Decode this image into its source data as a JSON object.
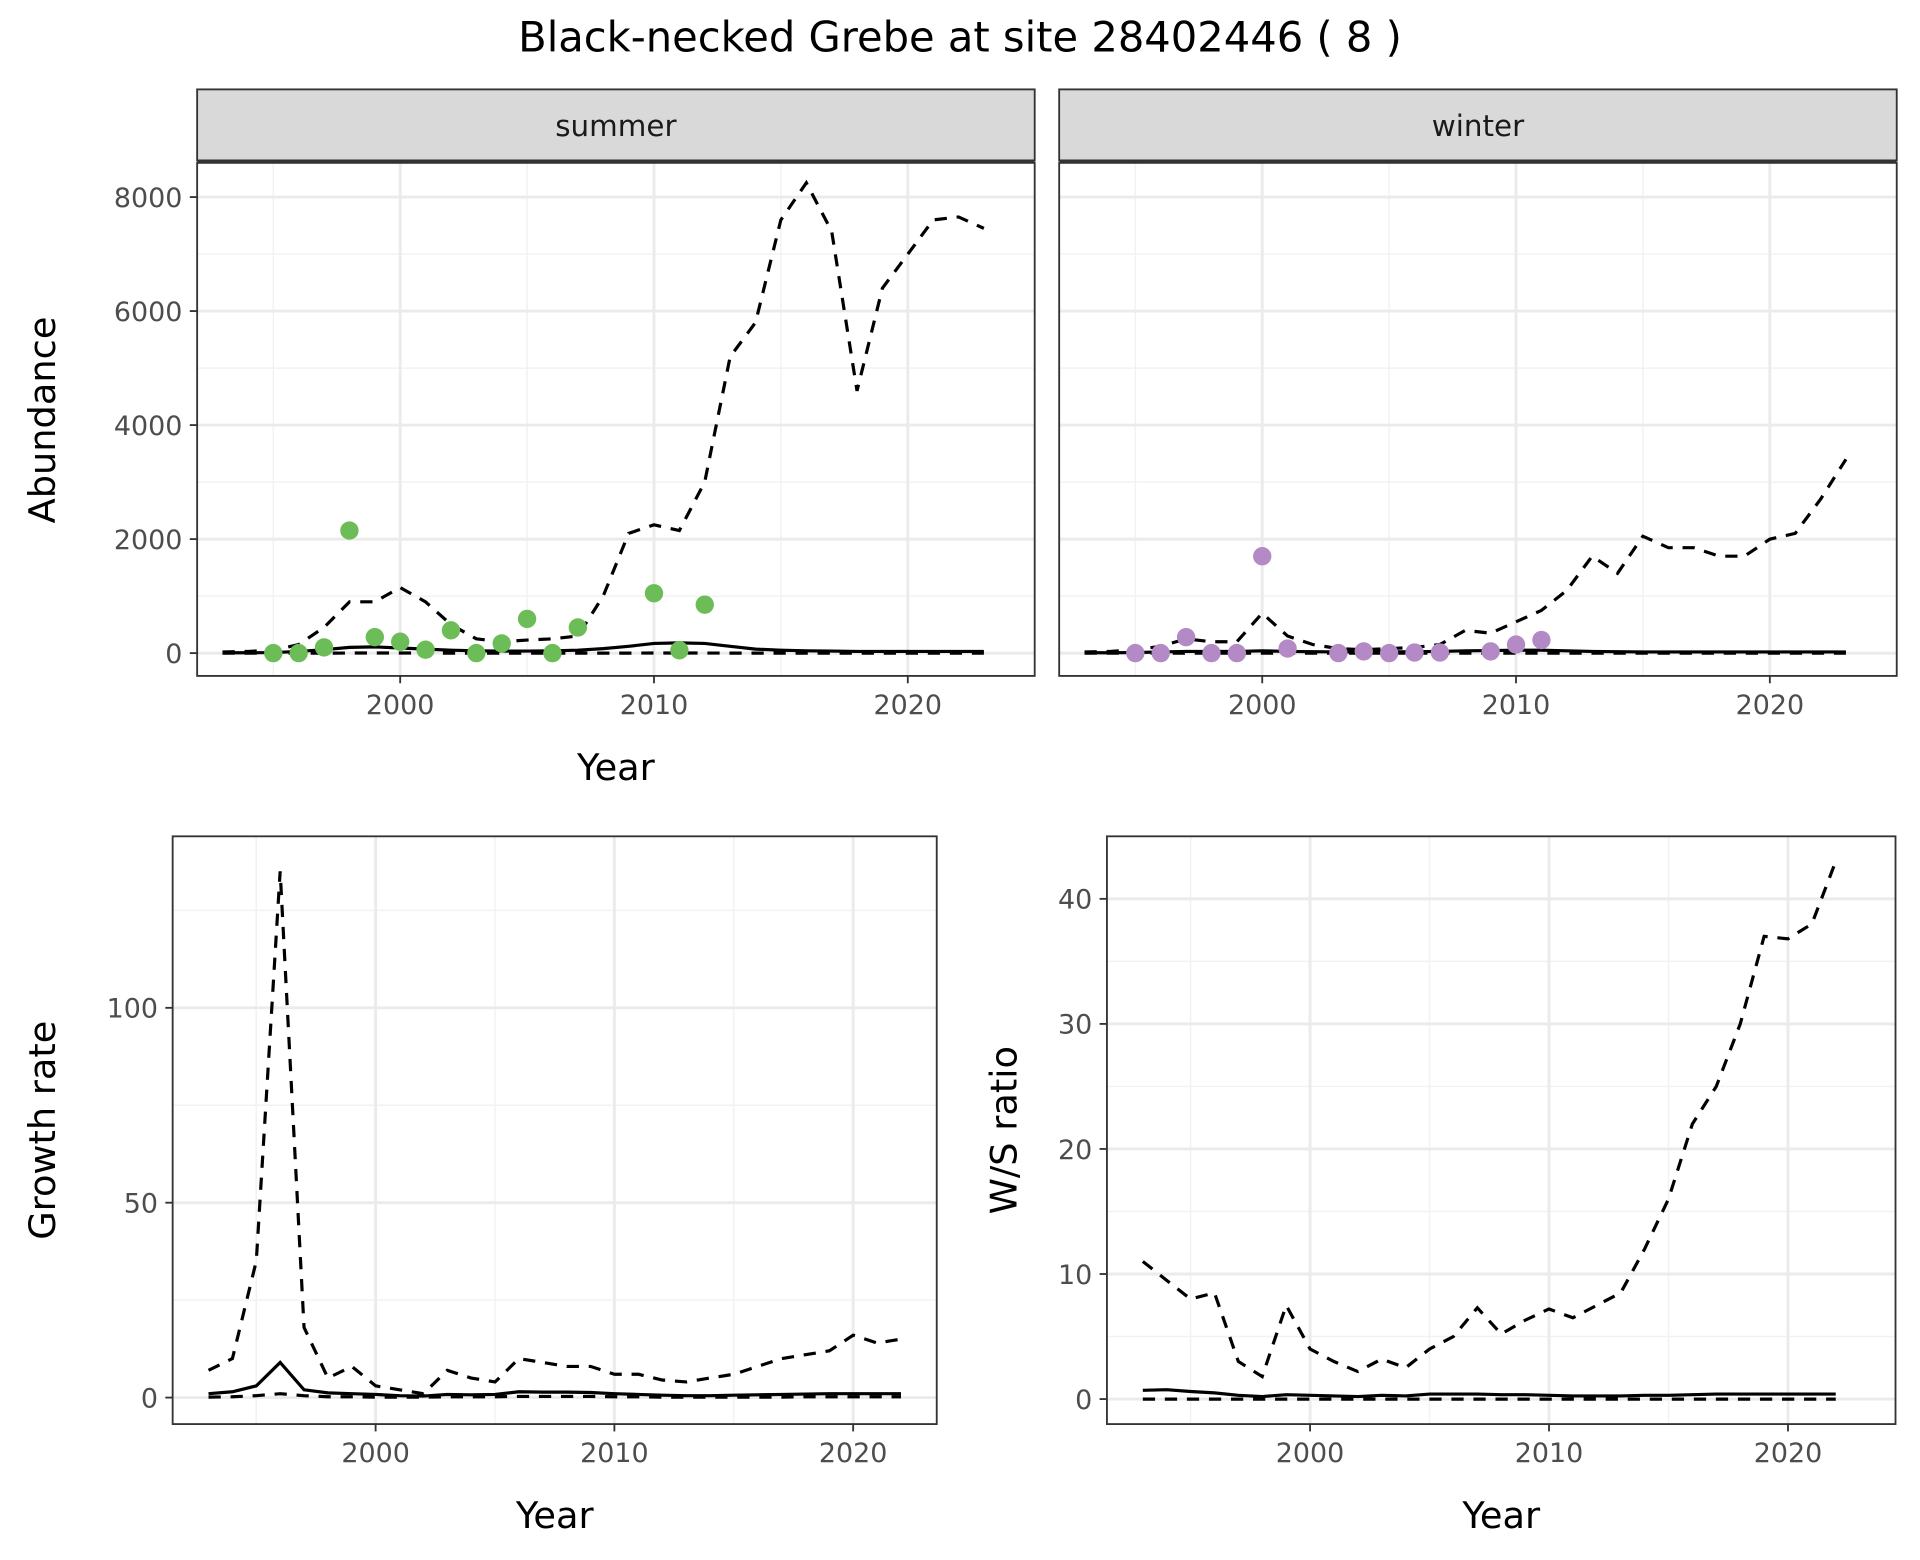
{
  "title": "Black-necked Grebe at site 28402446 ( 8 )",
  "colors": {
    "summer": "#6cbd58",
    "winter": "#b48ac6",
    "line": "#000000"
  },
  "chart_data": [
    {
      "type": "line",
      "panel": "summer",
      "strip": "summer",
      "xlabel": "Year",
      "ylabel": "Abundance",
      "xlim": [
        1992,
        2025
      ],
      "ylim": [
        -400,
        8600
      ],
      "xticks": [
        2000,
        2010,
        2020
      ],
      "yticks": [
        0,
        2000,
        4000,
        6000,
        8000
      ],
      "years": [
        1993,
        1994,
        1995,
        1996,
        1997,
        1998,
        1999,
        2000,
        2001,
        2002,
        2003,
        2004,
        2005,
        2006,
        2007,
        2008,
        2009,
        2010,
        2011,
        2012,
        2013,
        2014,
        2015,
        2016,
        2017,
        2018,
        2019,
        2020,
        2021,
        2022,
        2023
      ],
      "series": [
        {
          "name": "upper",
          "style": "dashed",
          "values": [
            20,
            30,
            50,
            150,
            450,
            900,
            900,
            1150,
            900,
            500,
            250,
            200,
            230,
            250,
            300,
            1000,
            2100,
            2250,
            2150,
            3000,
            5200,
            5800,
            7600,
            8250,
            7400,
            4600,
            6400,
            7000,
            7600,
            7650,
            7450
          ]
        },
        {
          "name": "median",
          "style": "solid",
          "values": [
            5,
            5,
            10,
            30,
            60,
            100,
            110,
            90,
            70,
            50,
            40,
            35,
            35,
            40,
            50,
            80,
            120,
            170,
            180,
            170,
            120,
            70,
            50,
            40,
            35,
            30,
            30,
            30,
            30,
            30,
            30
          ]
        },
        {
          "name": "lower",
          "style": "dashed",
          "values": [
            0,
            0,
            0,
            0,
            0,
            1,
            1,
            1,
            1,
            0,
            0,
            0,
            0,
            0,
            0,
            0,
            0,
            1,
            1,
            1,
            0,
            0,
            0,
            0,
            0,
            0,
            0,
            0,
            0,
            0,
            0
          ]
        }
      ],
      "points": {
        "x": [
          1995,
          1996,
          1997,
          1998,
          1999,
          2000,
          2001,
          2002,
          2003,
          2004,
          2005,
          2006,
          2007,
          2010,
          2011,
          2012
        ],
        "y": [
          0,
          0,
          100,
          2150,
          280,
          200,
          60,
          400,
          0,
          170,
          600,
          0,
          450,
          1050,
          50,
          850
        ]
      }
    },
    {
      "type": "line",
      "panel": "winter",
      "strip": "winter",
      "xlabel": "Year",
      "ylabel": "",
      "xlim": [
        1992,
        2025
      ],
      "ylim": [
        -400,
        8600
      ],
      "xticks": [
        2000,
        2010,
        2020
      ],
      "yticks": [],
      "years": [
        1993,
        1994,
        1995,
        1996,
        1997,
        1998,
        1999,
        2000,
        2001,
        2002,
        2003,
        2004,
        2005,
        2006,
        2007,
        2008,
        2009,
        2010,
        2011,
        2012,
        2013,
        2014,
        2015,
        2016,
        2017,
        2018,
        2019,
        2020,
        2021,
        2022,
        2023
      ],
      "series": [
        {
          "name": "upper",
          "style": "dashed",
          "values": [
            20,
            30,
            60,
            120,
            250,
            200,
            200,
            700,
            300,
            150,
            80,
            60,
            80,
            100,
            150,
            400,
            350,
            550,
            750,
            1100,
            1700,
            1400,
            2050,
            1850,
            1850,
            1700,
            1700,
            2000,
            2100,
            2700,
            3400
          ]
        },
        {
          "name": "median",
          "style": "solid",
          "values": [
            5,
            5,
            10,
            20,
            30,
            30,
            30,
            40,
            30,
            25,
            20,
            20,
            20,
            25,
            30,
            40,
            45,
            50,
            50,
            40,
            30,
            25,
            20,
            20,
            20,
            20,
            20,
            20,
            20,
            20,
            20
          ]
        },
        {
          "name": "lower",
          "style": "dashed",
          "values": [
            0,
            0,
            0,
            0,
            0,
            0,
            0,
            0,
            0,
            0,
            0,
            0,
            0,
            0,
            0,
            0,
            0,
            0,
            0,
            0,
            0,
            0,
            0,
            0,
            0,
            0,
            0,
            0,
            0,
            0,
            0
          ]
        }
      ],
      "points": {
        "x": [
          1995,
          1996,
          1997,
          1998,
          1999,
          2000,
          2001,
          2003,
          2004,
          2005,
          2006,
          2007,
          2009,
          2010,
          2011
        ],
        "y": [
          0,
          0,
          280,
          0,
          0,
          1700,
          80,
          0,
          30,
          0,
          10,
          10,
          30,
          150,
          230
        ]
      }
    },
    {
      "type": "line",
      "panel": "growth",
      "xlabel": "Year",
      "ylabel": "Growth rate",
      "xlim": [
        1991.5,
        2023.5
      ],
      "ylim": [
        -6.8,
        144
      ],
      "xticks": [
        2000,
        2010,
        2020
      ],
      "yticks": [
        0,
        50,
        100
      ],
      "years": [
        1993,
        1994,
        1995,
        1996,
        1997,
        1998,
        1999,
        2000,
        2001,
        2002,
        2003,
        2004,
        2005,
        2006,
        2007,
        2008,
        2009,
        2010,
        2011,
        2012,
        2013,
        2014,
        2015,
        2016,
        2017,
        2018,
        2019,
        2020,
        2021,
        2022
      ],
      "series": [
        {
          "name": "upper",
          "style": "dashed",
          "values": [
            7,
            10,
            35,
            135,
            18,
            5,
            8,
            3,
            2,
            1,
            7,
            5,
            4,
            10,
            9,
            8,
            8,
            6,
            6,
            4.5,
            4,
            5,
            6,
            8,
            10,
            11,
            12,
            16,
            14,
            15
          ]
        },
        {
          "name": "median",
          "style": "solid",
          "values": [
            1,
            1.5,
            3,
            9,
            2,
            1.2,
            1,
            0.8,
            0.5,
            0.4,
            0.8,
            0.7,
            0.8,
            1.5,
            1.4,
            1.4,
            1.3,
            1,
            0.8,
            0.6,
            0.5,
            0.5,
            0.6,
            0.7,
            0.8,
            0.9,
            1,
            1,
            1,
            1
          ]
        },
        {
          "name": "lower",
          "style": "dashed",
          "values": [
            0.1,
            0.2,
            0.5,
            1,
            0.5,
            0.2,
            0.2,
            0.1,
            0.1,
            0.1,
            0.2,
            0.2,
            0.2,
            0.3,
            0.3,
            0.3,
            0.3,
            0.2,
            0.2,
            0.1,
            0.1,
            0.1,
            0.1,
            0.1,
            0.1,
            0.2,
            0.2,
            0.2,
            0.2,
            0.2
          ]
        }
      ]
    },
    {
      "type": "line",
      "panel": "ratio",
      "xlabel": "Year",
      "ylabel": "W/S ratio",
      "xlim": [
        1991.5,
        2024.5
      ],
      "ylim": [
        -2,
        45
      ],
      "xticks": [
        2000,
        2010,
        2020
      ],
      "yticks": [
        0,
        10,
        20,
        30,
        40
      ],
      "years": [
        1993,
        1994,
        1995,
        1996,
        1997,
        1998,
        1999,
        2000,
        2001,
        2002,
        2003,
        2004,
        2005,
        2006,
        2007,
        2008,
        2009,
        2010,
        2011,
        2012,
        2013,
        2014,
        2015,
        2016,
        2017,
        2018,
        2019,
        2020,
        2021,
        2022
      ],
      "series": [
        {
          "name": "upper",
          "style": "dashed",
          "values": [
            11,
            9.5,
            8,
            8.5,
            3,
            1.8,
            7.5,
            4,
            3,
            2.2,
            3.2,
            2.5,
            4,
            5,
            7.3,
            5.2,
            6.3,
            7.2,
            6.5,
            7.5,
            8.5,
            12,
            16,
            22,
            25,
            30,
            37,
            36.8,
            38,
            43
          ]
        },
        {
          "name": "median",
          "style": "solid",
          "values": [
            0.7,
            0.75,
            0.6,
            0.5,
            0.3,
            0.2,
            0.35,
            0.3,
            0.25,
            0.2,
            0.3,
            0.25,
            0.4,
            0.4,
            0.4,
            0.35,
            0.35,
            0.3,
            0.25,
            0.25,
            0.25,
            0.3,
            0.3,
            0.35,
            0.4,
            0.4,
            0.4,
            0.4,
            0.4,
            0.4
          ]
        },
        {
          "name": "lower",
          "style": "dashed",
          "values": [
            0,
            0,
            0,
            0,
            0,
            0,
            0,
            0,
            0,
            0,
            0,
            0,
            0,
            0,
            0,
            0,
            0,
            0,
            0,
            0,
            0,
            0,
            0,
            0,
            0,
            0,
            0,
            0,
            0,
            0
          ]
        }
      ]
    }
  ]
}
